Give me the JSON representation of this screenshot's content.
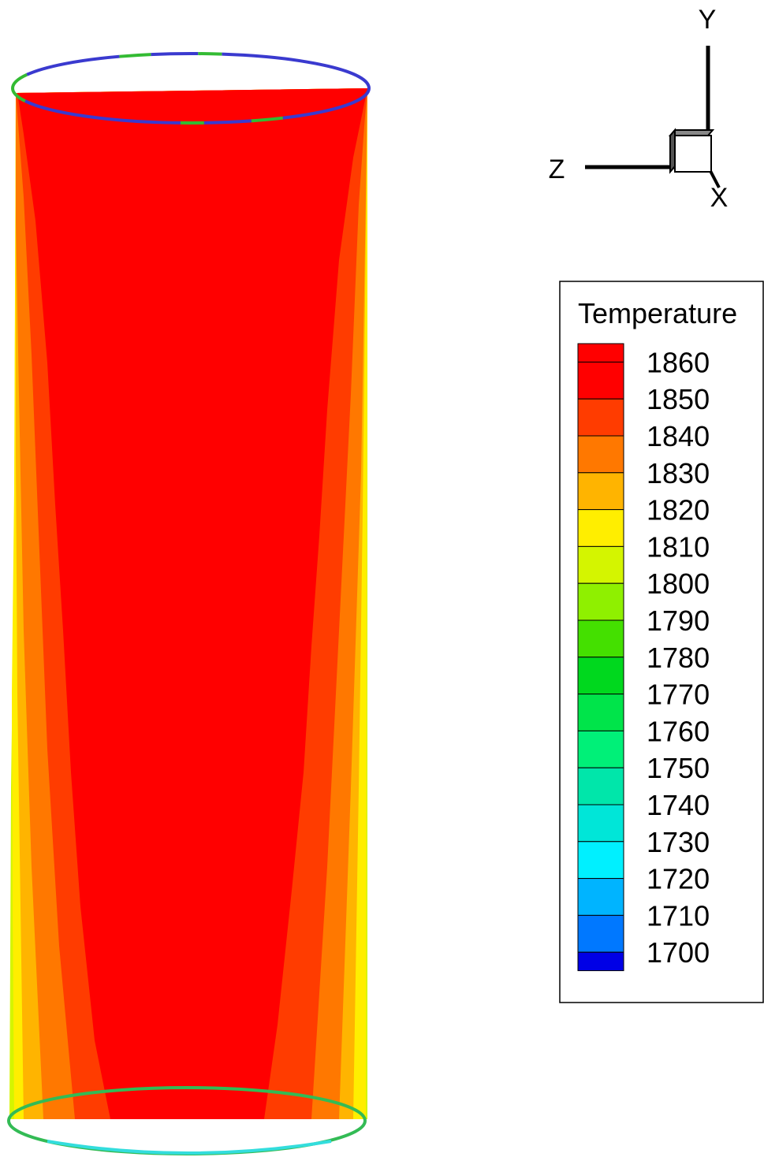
{
  "axes_triad": {
    "y_label": "Y",
    "z_label": "Z",
    "x_label": "X"
  },
  "legend": {
    "title": "Temperature",
    "levels": [
      {
        "value": "1860",
        "color": "#ff0000"
      },
      {
        "value": "1850",
        "color": "#ff3c00"
      },
      {
        "value": "1840",
        "color": "#ff7800"
      },
      {
        "value": "1830",
        "color": "#ffb400"
      },
      {
        "value": "1820",
        "color": "#ffee00"
      },
      {
        "value": "1810",
        "color": "#d4f500"
      },
      {
        "value": "1800",
        "color": "#8ff000"
      },
      {
        "value": "1790",
        "color": "#44e000"
      },
      {
        "value": "1780",
        "color": "#00d81e"
      },
      {
        "value": "1770",
        "color": "#00e44a"
      },
      {
        "value": "1760",
        "color": "#00f078"
      },
      {
        "value": "1750",
        "color": "#00e6aa"
      },
      {
        "value": "1740",
        "color": "#00e6d8"
      },
      {
        "value": "1730",
        "color": "#00f0ff"
      },
      {
        "value": "1720",
        "color": "#00b4ff"
      },
      {
        "value": "1710",
        "color": "#0078ff"
      },
      {
        "value": "1700",
        "color": "#0032ff"
      }
    ],
    "bottom_color": "#0000e6"
  },
  "cylinder_colors": {
    "core": "#ff0000",
    "band_1850": "#ff3c00",
    "band_1840": "#ff7800",
    "band_1830": "#ffb400",
    "band_1820": "#ffee00",
    "band_1810": "#d4f500",
    "top_rim_a": "#3a3acf",
    "top_rim_b": "#33bb33",
    "bottom_rim_a": "#33bb55",
    "bottom_rim_b": "#33dddd"
  }
}
